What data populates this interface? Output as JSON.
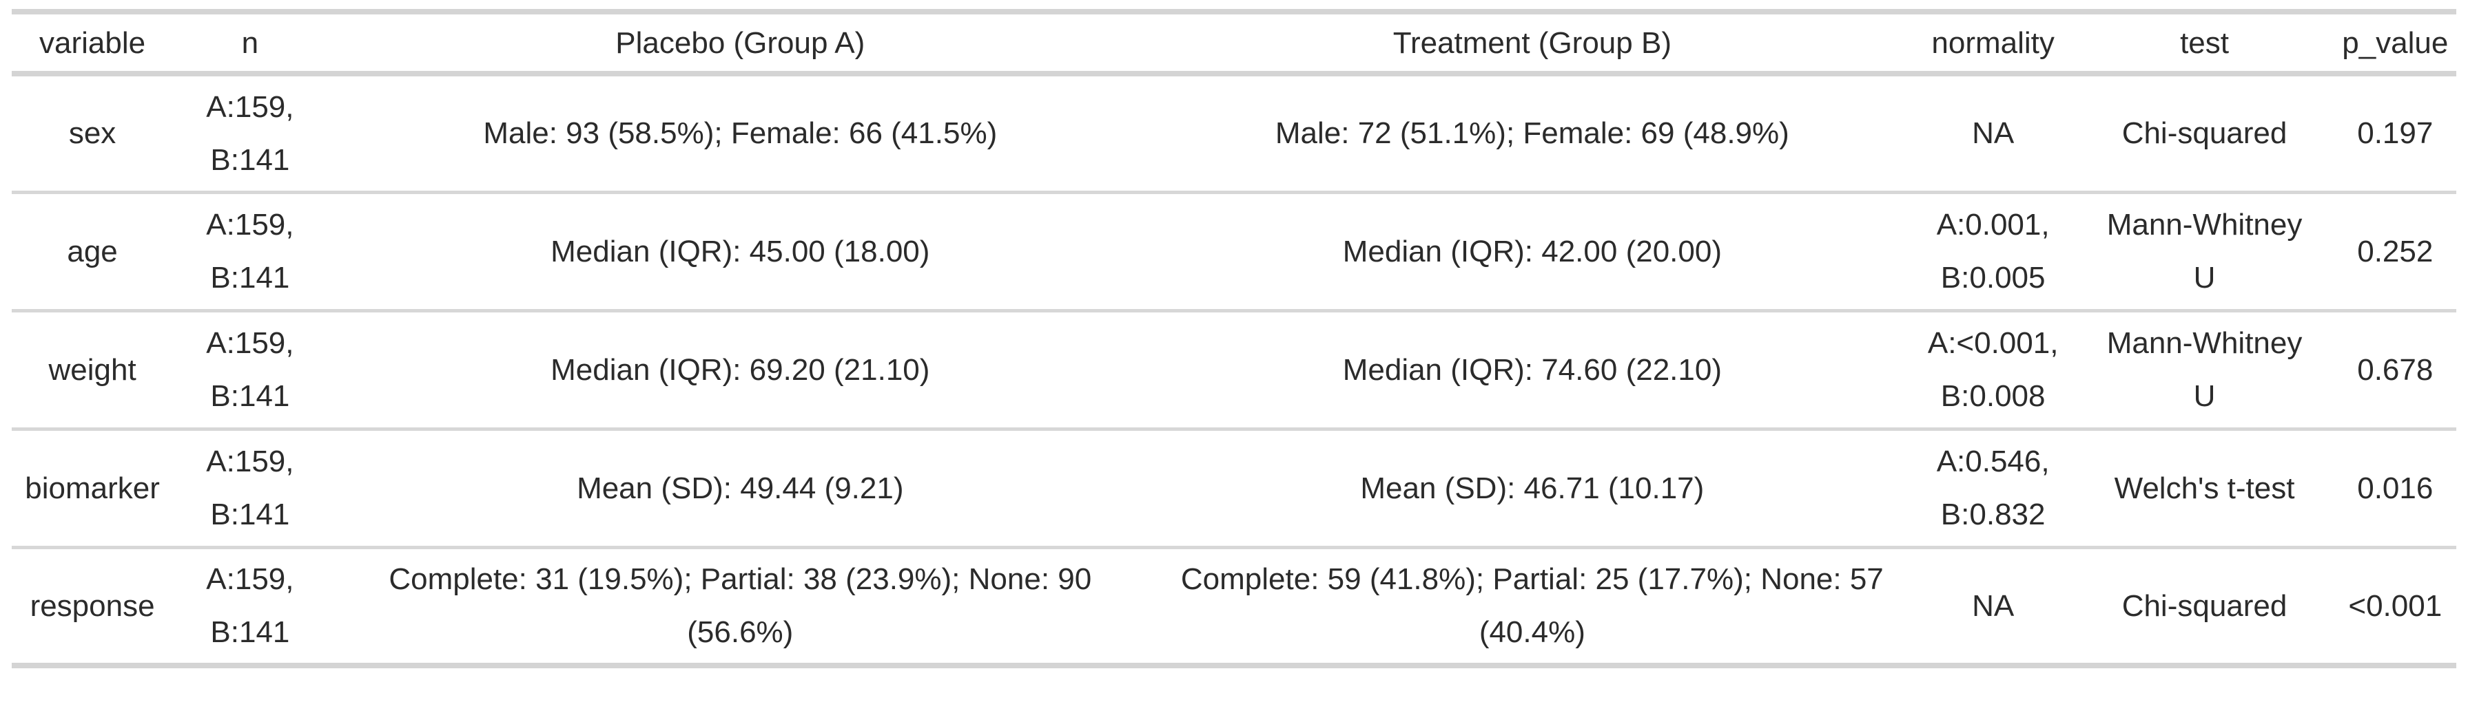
{
  "colors": {
    "text": "#2b2b2b",
    "border_heavy": "#d4d4d4",
    "border_light": "#d7d7d7",
    "background": "#ffffff"
  },
  "chart_data": {
    "type": "table",
    "title": "",
    "legend_position": "none",
    "grid": "horizontal-rules-only",
    "columns": [
      "variable",
      "n",
      "Placebo (Group A)",
      "Treatment (Group B)",
      "normality",
      "test",
      "p_value"
    ],
    "rows": [
      {
        "variable": "sex",
        "n": "A:159,\nB:141",
        "placebo": "Male: 93 (58.5%); Female: 66 (41.5%)",
        "treatment": "Male: 72 (51.1%); Female: 69 (48.9%)",
        "normality": "NA",
        "test": "Chi-squared",
        "p_value": "0.197"
      },
      {
        "variable": "age",
        "n": "A:159,\nB:141",
        "placebo": "Median (IQR): 45.00 (18.00)",
        "treatment": "Median (IQR): 42.00 (20.00)",
        "normality": "A:0.001,\nB:0.005",
        "test": "Mann-Whitney\nU",
        "p_value": "0.252"
      },
      {
        "variable": "weight",
        "n": "A:159,\nB:141",
        "placebo": "Median (IQR): 69.20 (21.10)",
        "treatment": "Median (IQR): 74.60 (22.10)",
        "normality": "A:<0.001,\nB:0.008",
        "test": "Mann-Whitney\nU",
        "p_value": "0.678"
      },
      {
        "variable": "biomarker",
        "n": "A:159,\nB:141",
        "placebo": "Mean (SD): 49.44 (9.21)",
        "treatment": "Mean (SD): 46.71 (10.17)",
        "normality": "A:0.546,\nB:0.832",
        "test": "Welch's t-test",
        "p_value": "0.016"
      },
      {
        "variable": "response",
        "n": "A:159,\nB:141",
        "placebo": "Complete: 31 (19.5%); Partial: 38 (23.9%); None: 90\n(56.6%)",
        "treatment": "Complete: 59 (41.8%); Partial: 25 (17.7%); None: 57\n(40.4%)",
        "normality": "NA",
        "test": "Chi-squared",
        "p_value": "<0.001"
      }
    ]
  }
}
